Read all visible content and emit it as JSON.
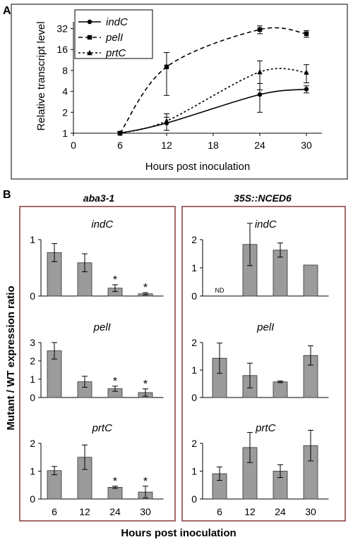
{
  "panel_a": {
    "label": "A",
    "ylabel": "Relative transcript level",
    "xlabel": "Hours post inoculation",
    "x_ticks": [
      "0",
      "6",
      "12",
      "18",
      "24",
      "30"
    ],
    "y_ticks": [
      "1",
      "2",
      "4",
      "8",
      "16",
      "32"
    ],
    "legend": [
      "indC",
      "pelI",
      "prtC"
    ]
  },
  "panel_b": {
    "label": "B",
    "ylabel": "Mutant / WT expression ratio",
    "xlabel": "Hours post inoculation",
    "x_ticks": [
      "6",
      "12",
      "24",
      "30"
    ],
    "group_titles": [
      "aba3-1",
      "35S::NCED6"
    ],
    "nd_label": "ND",
    "sig_marker": "*"
  },
  "colors": {
    "bar": "#9b9b9b",
    "box": "#7a2a2a",
    "frame": "#000000"
  },
  "chart_data": [
    {
      "type": "line",
      "x": [
        6,
        12,
        24,
        30
      ],
      "xlim": [
        0,
        32
      ],
      "ylim": [
        1,
        40
      ],
      "yscale": "log2",
      "legend_position": "top-left",
      "series": [
        {
          "name": "indC",
          "marker": "circle",
          "line": "solid",
          "y": [
            1.0,
            1.4,
            3.6,
            4.3
          ],
          "err": [
            0.05,
            0.3,
            1.6,
            0.5
          ]
        },
        {
          "name": "pelI",
          "marker": "square",
          "line": "dashed",
          "y": [
            1.0,
            9.0,
            31,
            27
          ],
          "err": [
            0.05,
            5.5,
            4,
            3
          ]
        },
        {
          "name": "prtC",
          "marker": "triangle",
          "line": "dashed-short",
          "y": [
            1.0,
            1.5,
            7.6,
            7.5
          ],
          "err": [
            0.05,
            0.4,
            3.4,
            2.2
          ]
        }
      ]
    },
    {
      "type": "bar",
      "group": "aba3-1",
      "gene": "indC",
      "categories": [
        "6",
        "12",
        "24",
        "30"
      ],
      "values": [
        0.77,
        0.59,
        0.14,
        0.04
      ],
      "err": [
        0.16,
        0.16,
        0.06,
        0.02
      ],
      "sig": [
        false,
        false,
        true,
        true
      ],
      "nd": [
        false,
        false,
        false,
        false
      ],
      "ylim": [
        0,
        1
      ],
      "yticks": [
        0,
        1
      ]
    },
    {
      "type": "bar",
      "group": "35S::NCED6",
      "gene": "indC",
      "categories": [
        "6",
        "12",
        "24",
        "30"
      ],
      "values": [
        0,
        1.83,
        1.63,
        1.1
      ],
      "err": [
        0,
        0.75,
        0.25,
        0
      ],
      "sig": [
        false,
        false,
        false,
        false
      ],
      "nd": [
        true,
        false,
        false,
        false
      ],
      "ylim": [
        0,
        2
      ],
      "yticks": [
        0,
        1,
        2
      ]
    },
    {
      "type": "bar",
      "group": "aba3-1",
      "gene": "pelI",
      "categories": [
        "6",
        "12",
        "24",
        "30"
      ],
      "values": [
        2.55,
        0.86,
        0.48,
        0.27
      ],
      "err": [
        0.45,
        0.3,
        0.14,
        0.2
      ],
      "sig": [
        false,
        false,
        true,
        true
      ],
      "nd": [
        false,
        false,
        false,
        false
      ],
      "ylim": [
        0,
        3
      ],
      "yticks": [
        0,
        1,
        2,
        3
      ]
    },
    {
      "type": "bar",
      "group": "35S::NCED6",
      "gene": "pelI",
      "categories": [
        "6",
        "12",
        "24",
        "30"
      ],
      "values": [
        1.43,
        0.8,
        0.57,
        1.53
      ],
      "err": [
        0.55,
        0.45,
        0.03,
        0.35
      ],
      "sig": [
        false,
        false,
        false,
        false
      ],
      "nd": [
        false,
        false,
        false,
        false
      ],
      "ylim": [
        0,
        2
      ],
      "yticks": [
        0,
        1,
        2
      ]
    },
    {
      "type": "bar",
      "group": "aba3-1",
      "gene": "prtC",
      "categories": [
        "6",
        "12",
        "24",
        "30"
      ],
      "values": [
        1.02,
        1.5,
        0.42,
        0.25
      ],
      "err": [
        0.15,
        0.44,
        0.04,
        0.21
      ],
      "sig": [
        false,
        false,
        true,
        true
      ],
      "nd": [
        false,
        false,
        false,
        false
      ],
      "ylim": [
        0,
        2
      ],
      "yticks": [
        0,
        1,
        2
      ]
    },
    {
      "type": "bar",
      "group": "35S::NCED6",
      "gene": "prtC",
      "categories": [
        "6",
        "12",
        "24",
        "30"
      ],
      "values": [
        0.91,
        1.85,
        1.0,
        1.92
      ],
      "err": [
        0.24,
        0.54,
        0.23,
        0.55
      ],
      "sig": [
        false,
        false,
        false,
        false
      ],
      "nd": [
        false,
        false,
        false,
        false
      ],
      "ylim": [
        0,
        2
      ],
      "yticks": [
        0,
        1,
        2
      ]
    }
  ]
}
